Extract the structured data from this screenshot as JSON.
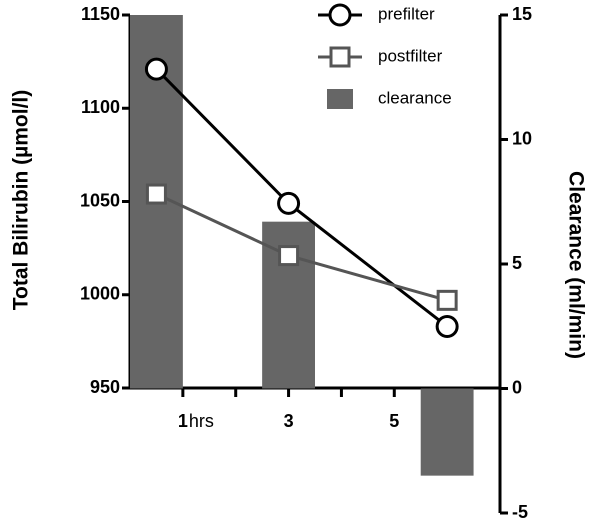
{
  "chart_data": {
    "type": "line",
    "xlabel": "hrs",
    "ylabel": "Total Bilirubin (µmol/l)",
    "y2label": "Clearance (ml/min)",
    "xlim": [
      0,
      7
    ],
    "xticks": [
      1,
      3,
      5
    ],
    "xminor_ticks": [
      2,
      4,
      6
    ],
    "ylim": [
      950,
      1150
    ],
    "yticks": [
      950,
      1000,
      1050,
      1100,
      1150
    ],
    "y2lim": [
      -5,
      15
    ],
    "y2ticks": [
      -5,
      0,
      5,
      10,
      15
    ],
    "legend": "upper right",
    "series": [
      {
        "name": "clearance",
        "type": "bar",
        "axis": "y2",
        "color": "#666666",
        "x": [
          0.5,
          3,
          6
        ],
        "values": [
          15,
          6.7,
          -3.5
        ]
      },
      {
        "name": "prefilter",
        "type": "line",
        "marker": "circle",
        "color": "#000000",
        "x": [
          0.5,
          3,
          6
        ],
        "values": [
          1121,
          1049,
          983
        ]
      },
      {
        "name": "postfilter",
        "type": "line",
        "marker": "square",
        "color": "#555555",
        "x": [
          0.5,
          3,
          6
        ],
        "values": [
          1054,
          1021,
          997
        ]
      }
    ]
  }
}
